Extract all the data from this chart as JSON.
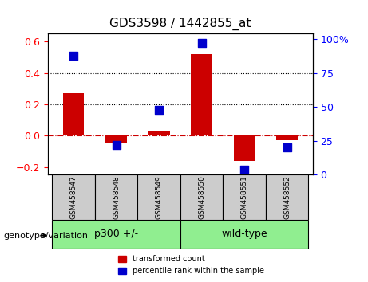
{
  "title": "GDS3598 / 1442855_at",
  "samples": [
    "GSM458547",
    "GSM458548",
    "GSM458549",
    "GSM458550",
    "GSM458551",
    "GSM458552"
  ],
  "red_values": [
    0.27,
    -0.05,
    0.03,
    0.52,
    -0.16,
    -0.03
  ],
  "blue_values_pct": [
    88,
    22,
    48,
    97,
    4,
    20
  ],
  "ylim_left": [
    -0.25,
    0.65
  ],
  "ylim_right": [
    0,
    104
  ],
  "yticks_left": [
    -0.2,
    0.0,
    0.2,
    0.4,
    0.6
  ],
  "yticks_right": [
    0,
    25,
    50,
    75,
    100
  ],
  "groups": [
    {
      "label": "p300 +/-",
      "samples": [
        0,
        1,
        2
      ],
      "color": "#90EE90"
    },
    {
      "label": "wild-type",
      "samples": [
        3,
        4,
        5
      ],
      "color": "#90EE90"
    }
  ],
  "group_divider": 2.5,
  "bar_color": "#CC0000",
  "dot_color": "#0000CC",
  "bar_width": 0.5,
  "dot_size": 60,
  "hline_color": "#CC0000",
  "hline_style": "-.",
  "gridline_style": ":",
  "gridline_color": "black",
  "xlabel_color": "red",
  "ylabel_right_color": "blue",
  "tick_label_color_left": "red",
  "tick_label_color_right": "blue",
  "legend_red_label": "transformed count",
  "legend_blue_label": "percentile rank within the sample",
  "genotype_label": "genotype/variation",
  "bg_color_axis": "white",
  "sample_box_color": "#CCCCCC",
  "group_box_color": "#90EE90"
}
